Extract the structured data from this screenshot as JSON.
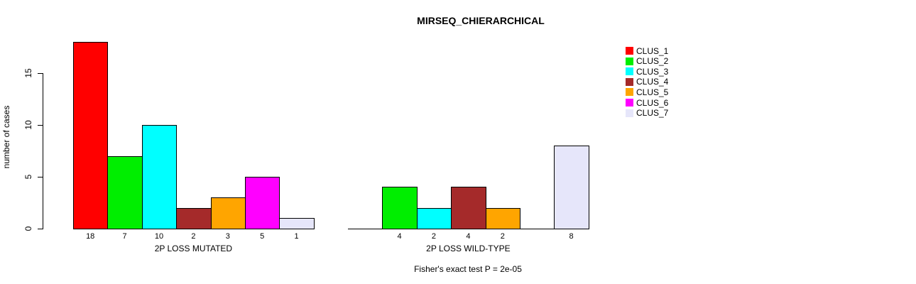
{
  "title": "MIRSEQ_CHIERARCHICAL",
  "footer": "Fisher's exact test P = 2e-05",
  "chart_data": {
    "type": "bar",
    "title": "MIRSEQ_CHIERARCHICAL",
    "ylabel": "number of cases",
    "xlabel": "",
    "categories": [
      "2P LOSS MUTATED",
      "2P LOSS WILD-TYPE"
    ],
    "series": [
      {
        "name": "CLUS_1",
        "color": "#ff0000",
        "values": [
          18,
          0
        ]
      },
      {
        "name": "CLUS_2",
        "color": "#00ee00",
        "values": [
          7,
          4
        ]
      },
      {
        "name": "CLUS_3",
        "color": "#00ffff",
        "values": [
          10,
          2
        ]
      },
      {
        "name": "CLUS_4",
        "color": "#a52a2a",
        "values": [
          2,
          4
        ]
      },
      {
        "name": "CLUS_5",
        "color": "#ffa500",
        "values": [
          3,
          2
        ]
      },
      {
        "name": "CLUS_6",
        "color": "#ff00ff",
        "values": [
          5,
          0
        ]
      },
      {
        "name": "CLUS_7",
        "color": "#e6e6fa",
        "values": [
          1,
          8
        ]
      }
    ],
    "yticks": [
      0,
      5,
      10,
      15
    ],
    "ylim": [
      0,
      18
    ],
    "bar_value_labels": true,
    "zero_bars_hidden": true,
    "grid": false,
    "legend_position": "right",
    "annotation": "Fisher's exact test P = 2e-05"
  }
}
